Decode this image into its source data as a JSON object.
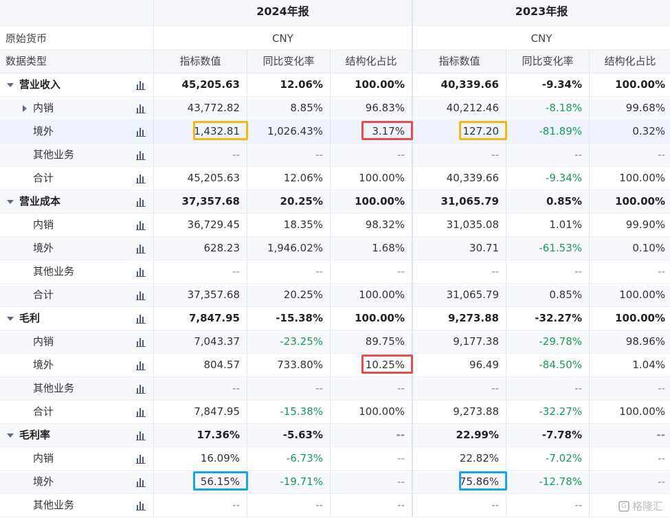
{
  "header": {
    "years": [
      "2024年报",
      "2023年报"
    ],
    "currency_label": "原始货币",
    "currencies": [
      "CNY",
      "CNY"
    ],
    "type_label": "数据类型",
    "cols": [
      "指标数值",
      "同比变化率",
      "结构化占比",
      "指标数值",
      "同比变化率",
      "结构化占比"
    ]
  },
  "rows": [
    {
      "label": "营业收入",
      "level": 0,
      "bold": true,
      "expand": "down",
      "v": [
        "45,205.63",
        "12.06%",
        "100.00%",
        "40,339.66",
        "-9.34%",
        "100.00%"
      ]
    },
    {
      "label": "内销",
      "level": 1,
      "bold": false,
      "expand": "right",
      "v": [
        "43,772.82",
        "8.85%",
        "96.83%",
        "40,212.46",
        "-8.18%",
        "99.68%"
      ]
    },
    {
      "label": "境外",
      "level": 1,
      "bold": false,
      "expand": "",
      "highlight": true,
      "v": [
        "1,432.81",
        "1,026.43%",
        "3.17%",
        "127.20",
        "-81.89%",
        "0.32%"
      ]
    },
    {
      "label": "其他业务",
      "level": 1,
      "bold": false,
      "expand": "",
      "v": [
        "--",
        "--",
        "--",
        "--",
        "--",
        "--"
      ]
    },
    {
      "label": "合计",
      "level": 1,
      "bold": false,
      "expand": "",
      "v": [
        "45,205.63",
        "12.06%",
        "100.00%",
        "40,339.66",
        "-9.34%",
        "100.00%"
      ]
    },
    {
      "label": "营业成本",
      "level": 0,
      "bold": true,
      "expand": "down",
      "v": [
        "37,357.68",
        "20.25%",
        "100.00%",
        "31,065.79",
        "0.85%",
        "100.00%"
      ]
    },
    {
      "label": "内销",
      "level": 1,
      "bold": false,
      "expand": "",
      "v": [
        "36,729.45",
        "18.35%",
        "98.32%",
        "31,035.08",
        "1.01%",
        "99.90%"
      ]
    },
    {
      "label": "境外",
      "level": 1,
      "bold": false,
      "expand": "",
      "v": [
        "628.23",
        "1,946.02%",
        "1.68%",
        "30.71",
        "-61.53%",
        "0.10%"
      ]
    },
    {
      "label": "其他业务",
      "level": 1,
      "bold": false,
      "expand": "",
      "v": [
        "--",
        "--",
        "--",
        "--",
        "--",
        "--"
      ]
    },
    {
      "label": "合计",
      "level": 1,
      "bold": false,
      "expand": "",
      "v": [
        "37,357.68",
        "20.25%",
        "100.00%",
        "31,065.79",
        "0.85%",
        "100.00%"
      ]
    },
    {
      "label": "毛利",
      "level": 0,
      "bold": true,
      "expand": "down",
      "v": [
        "7,847.95",
        "-15.38%",
        "100.00%",
        "9,273.88",
        "-32.27%",
        "100.00%"
      ]
    },
    {
      "label": "内销",
      "level": 1,
      "bold": false,
      "expand": "",
      "v": [
        "7,043.37",
        "-23.25%",
        "89.75%",
        "9,177.38",
        "-29.78%",
        "98.96%"
      ]
    },
    {
      "label": "境外",
      "level": 1,
      "bold": false,
      "expand": "",
      "v": [
        "804.57",
        "733.80%",
        "10.25%",
        "96.49",
        "-84.50%",
        "1.04%"
      ]
    },
    {
      "label": "其他业务",
      "level": 1,
      "bold": false,
      "expand": "",
      "v": [
        "--",
        "--",
        "--",
        "--",
        "--",
        "--"
      ]
    },
    {
      "label": "合计",
      "level": 1,
      "bold": false,
      "expand": "",
      "v": [
        "7,847.95",
        "-15.38%",
        "100.00%",
        "9,273.88",
        "-32.27%",
        "100.00%"
      ]
    },
    {
      "label": "毛利率",
      "level": 0,
      "bold": true,
      "expand": "down",
      "v": [
        "17.36%",
        "-5.63%",
        "--",
        "22.99%",
        "-7.78%",
        "--"
      ]
    },
    {
      "label": "内销",
      "level": 1,
      "bold": false,
      "expand": "",
      "v": [
        "16.09%",
        "-6.73%",
        "--",
        "22.82%",
        "-7.02%",
        "--"
      ]
    },
    {
      "label": "境外",
      "level": 1,
      "bold": false,
      "expand": "",
      "v": [
        "56.15%",
        "-19.71%",
        "--",
        "75.86%",
        "-12.78%",
        "--"
      ]
    },
    {
      "label": "其他业务",
      "level": 1,
      "bold": false,
      "expand": "",
      "v": [
        "--",
        "--",
        "--",
        "--",
        "--",
        "--"
      ]
    }
  ],
  "highlights": [
    {
      "row": 2,
      "col": 0,
      "color": "yellow"
    },
    {
      "row": 2,
      "col": 3,
      "color": "yellow"
    },
    {
      "row": 2,
      "col": 2,
      "color": "red"
    },
    {
      "row": 12,
      "col": 2,
      "color": "red"
    },
    {
      "row": 17,
      "col": 0,
      "color": "blue"
    },
    {
      "row": 17,
      "col": 3,
      "color": "blue"
    }
  ],
  "colors": {
    "negative": "#1a9a5a",
    "yellow": "#f5b618",
    "red": "#e94b4b",
    "blue": "#1aa4e8"
  },
  "icons": {
    "expand": "caret-down-icon",
    "collapsed": "caret-right-icon",
    "chart": "bar-chart-icon",
    "watermark": "gelonghui-logo-icon"
  },
  "watermark": "格隆汇"
}
